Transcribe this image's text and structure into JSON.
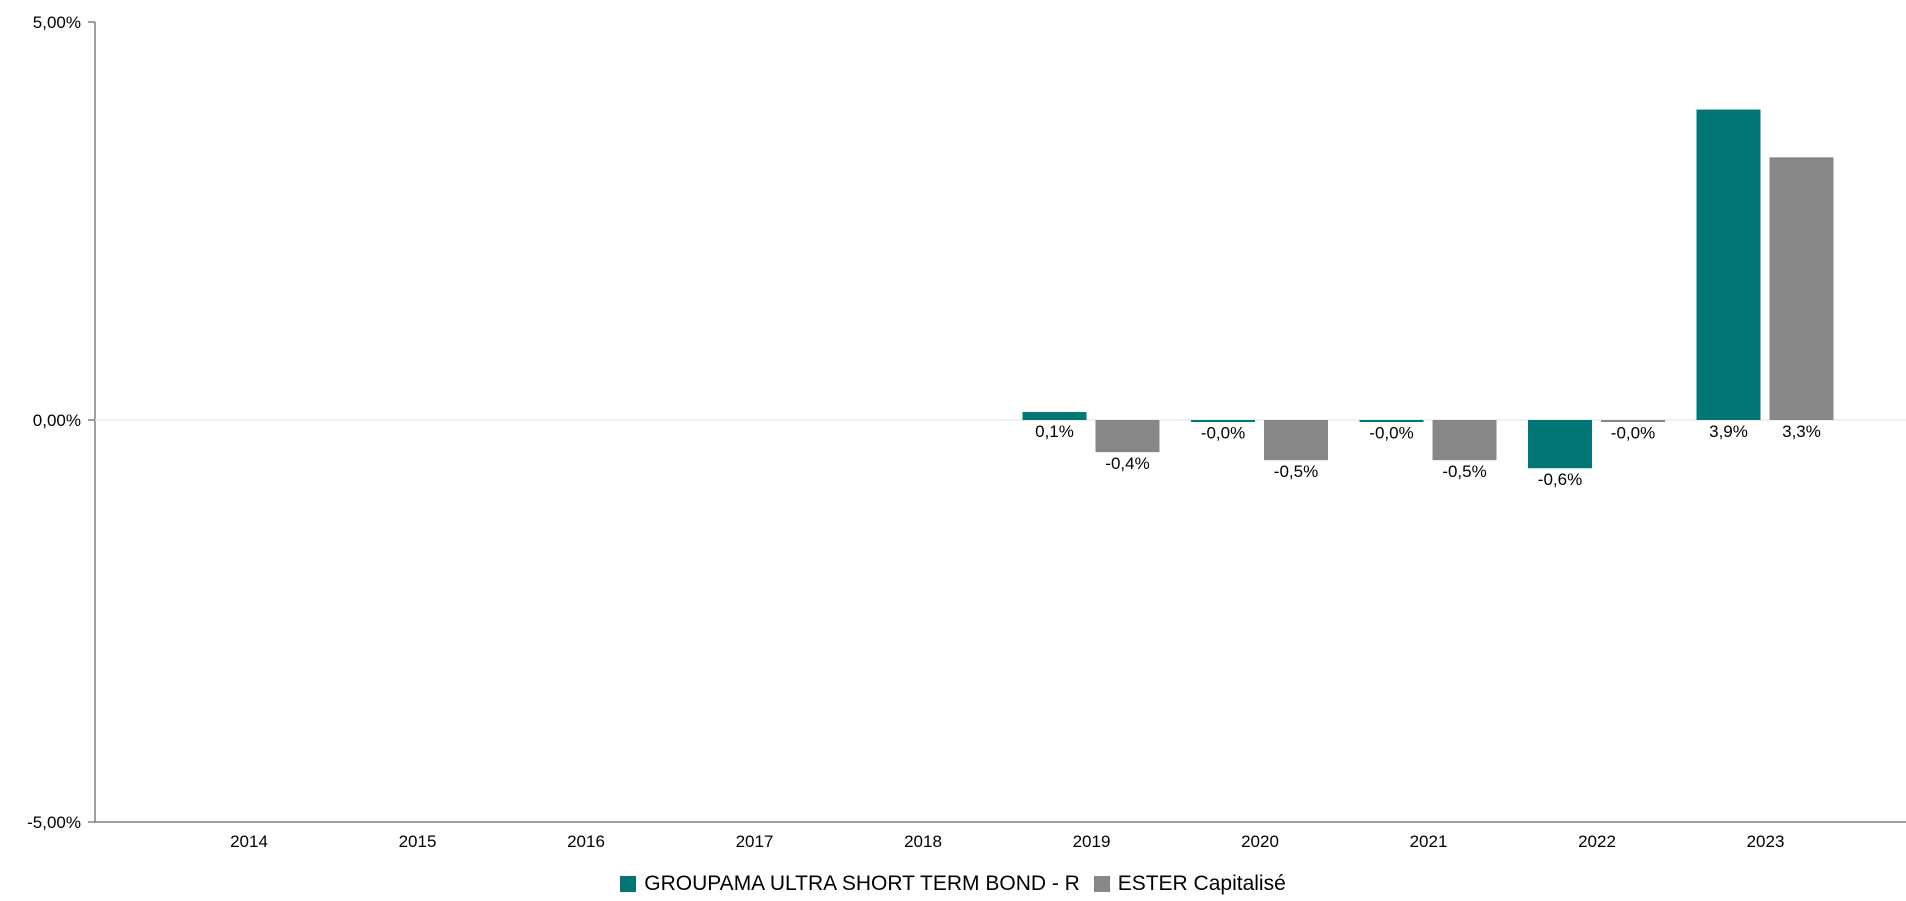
{
  "chart_data": {
    "type": "bar",
    "categories": [
      "2014",
      "2015",
      "2016",
      "2017",
      "2018",
      "2019",
      "2020",
      "2021",
      "2022",
      "2023"
    ],
    "series": [
      {
        "name": "GROUPAMA ULTRA SHORT TERM BOND - R",
        "color": "#017674",
        "values": [
          null,
          null,
          null,
          null,
          null,
          0.1,
          -0.02,
          -0.02,
          -0.6,
          3.9
        ],
        "labels": [
          "",
          "",
          "",
          "",
          "",
          "0,1%",
          "-0,0%",
          "-0,0%",
          "-0,6%",
          "3,9%"
        ]
      },
      {
        "name": "ESTER Capitalisé",
        "color": "#878787",
        "values": [
          null,
          null,
          null,
          null,
          null,
          -0.4,
          -0.5,
          -0.5,
          -0.02,
          3.3
        ],
        "labels": [
          "",
          "",
          "",
          "",
          "",
          "-0,4%",
          "-0,5%",
          "-0,5%",
          "-0,0%",
          "3,3%"
        ]
      }
    ],
    "ylim": [
      -5,
      5
    ],
    "yticks": [
      {
        "value": 5,
        "label": "5,00%"
      },
      {
        "value": 0,
        "label": "0,00%"
      },
      {
        "value": -5,
        "label": "-5,00%"
      }
    ],
    "grid": false,
    "legend_position": "bottom-center"
  }
}
